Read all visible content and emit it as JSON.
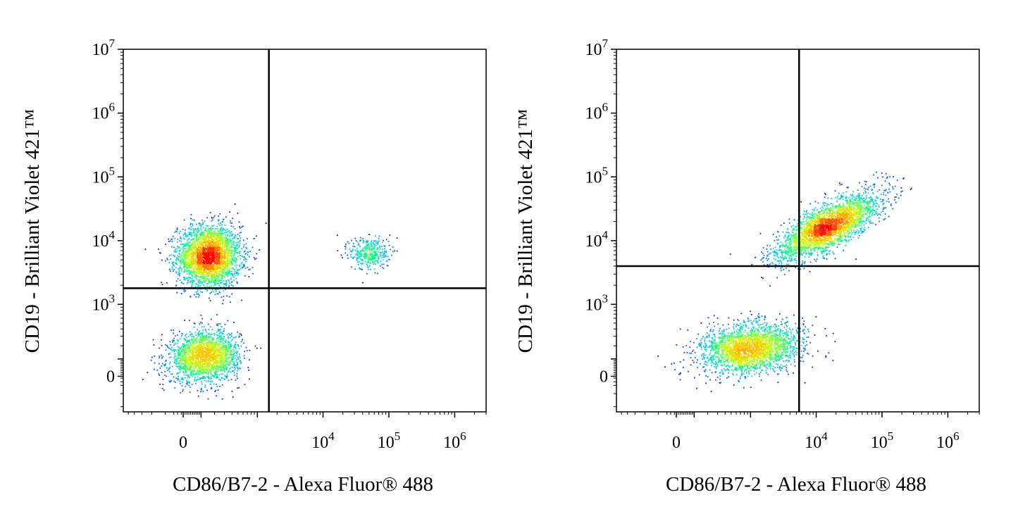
{
  "chart_data": [
    {
      "type": "scatter",
      "subtype": "flow-cytometry-density-dot-plot",
      "xlabel": "CD86/B7-2 - Alexa Fluor® 488",
      "ylabel": "CD19 - Brilliant Violet 421™",
      "x_scale": "biexponential",
      "y_scale": "biexponential",
      "xlim": [
        -600,
        3000000
      ],
      "ylim": [
        -250,
        10000000
      ],
      "x_ticks": [
        {
          "value": 0,
          "base": "0",
          "exp": ""
        },
        {
          "value": 10000,
          "base": "10",
          "exp": "4"
        },
        {
          "value": 100000,
          "base": "10",
          "exp": "5"
        },
        {
          "value": 1000000,
          "base": "10",
          "exp": "6"
        }
      ],
      "y_ticks": [
        {
          "value": 0,
          "base": "0",
          "exp": ""
        },
        {
          "value": 1000,
          "base": "10",
          "exp": "3"
        },
        {
          "value": 10000,
          "base": "10",
          "exp": "4"
        },
        {
          "value": 100000,
          "base": "10",
          "exp": "5"
        },
        {
          "value": 1000000,
          "base": "10",
          "exp": "6"
        },
        {
          "value": 10000000,
          "base": "10",
          "exp": "7"
        }
      ],
      "quadrant_gate": {
        "x": 1500,
        "y": 1800
      },
      "colormap": [
        "#0000ff",
        "#00bfff",
        "#00ff80",
        "#c8ff00",
        "#ffc000",
        "#ff0000"
      ],
      "populations": [
        {
          "cx": 150,
          "cy": 5800,
          "sx": 0.55,
          "sy": 0.55,
          "rho": 0.0,
          "weight": 0.55
        },
        {
          "cx": 120,
          "cy": 120,
          "sx": 0.6,
          "sy": 0.45,
          "rho": 0.1,
          "weight": 0.38
        },
        {
          "cx": 50000,
          "cy": 6500,
          "sx": 0.35,
          "sy": 0.3,
          "rho": 0.0,
          "weight": 0.07
        }
      ]
    },
    {
      "type": "scatter",
      "subtype": "flow-cytometry-density-dot-plot",
      "xlabel": "CD86/B7-2 - Alexa Fluor® 488",
      "ylabel": "CD19 - Brilliant Violet 421™",
      "x_scale": "biexponential",
      "y_scale": "biexponential",
      "xlim": [
        -600,
        3000000
      ],
      "ylim": [
        -250,
        10000000
      ],
      "x_ticks": [
        {
          "value": 0,
          "base": "0",
          "exp": ""
        },
        {
          "value": 10000,
          "base": "10",
          "exp": "4"
        },
        {
          "value": 100000,
          "base": "10",
          "exp": "5"
        },
        {
          "value": 1000000,
          "base": "10",
          "exp": "6"
        }
      ],
      "y_ticks": [
        {
          "value": 0,
          "base": "0",
          "exp": ""
        },
        {
          "value": 1000,
          "base": "10",
          "exp": "3"
        },
        {
          "value": 10000,
          "base": "10",
          "exp": "4"
        },
        {
          "value": 100000,
          "base": "10",
          "exp": "5"
        },
        {
          "value": 1000000,
          "base": "10",
          "exp": "6"
        },
        {
          "value": 10000000,
          "base": "10",
          "exp": "7"
        }
      ],
      "quadrant_gate": {
        "x": 5500,
        "y": 4000
      },
      "colormap": [
        "#0000ff",
        "#00bfff",
        "#00ff80",
        "#c8ff00",
        "#ffc000",
        "#ff0000"
      ],
      "populations": [
        {
          "cx": 15000,
          "cy": 17000,
          "sx": 0.9,
          "sy": 0.6,
          "rho": 0.75,
          "weight": 0.55
        },
        {
          "cx": 900,
          "cy": 180,
          "sx": 0.9,
          "sy": 0.45,
          "rho": 0.2,
          "weight": 0.45
        }
      ]
    }
  ]
}
